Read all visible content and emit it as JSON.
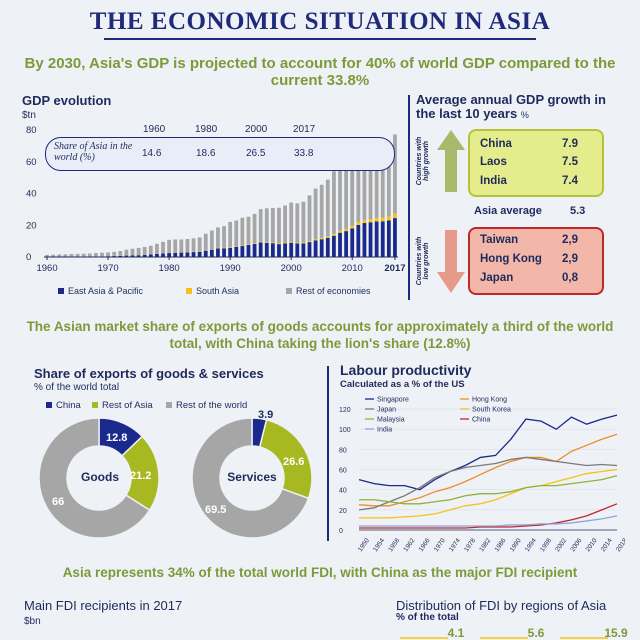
{
  "header": {
    "title": "THE ECONOMIC SITUATION IN ASIA",
    "subtitle": "By 2030, Asia's GDP is projected to account for 40% of world GDP compared to the current 33.8%"
  },
  "gdp_evolution": {
    "title": "GDP evolution",
    "unit": "$tn",
    "share_label": "Share of Asia in the world (%)",
    "share_years": [
      "1960",
      "1980",
      "2000",
      "2017"
    ],
    "share_values": [
      "14.6",
      "18.6",
      "26.5",
      "33.8"
    ],
    "yticks": [
      "80",
      "60",
      "40",
      "20",
      "0"
    ],
    "xticks": [
      "1960",
      "1970",
      "1980",
      "1990",
      "2000",
      "2010",
      "2017"
    ],
    "legend": [
      "East Asia & Pacific",
      "South Asia",
      "Rest of economies"
    ]
  },
  "growth": {
    "title": "Average annual GDP growth in the last 10 years",
    "unit": "%",
    "high_label": "Countries with high growth",
    "low_label": "Countries with low growth",
    "high": [
      {
        "country": "China",
        "value": "7.9"
      },
      {
        "country": "Laos",
        "value": "7.5"
      },
      {
        "country": "India",
        "value": "7.4"
      }
    ],
    "average_label": "Asia average",
    "average_value": "5.3",
    "low": [
      {
        "country": "Taiwan",
        "value": "2,9"
      },
      {
        "country": "Hong Kong",
        "value": "2,9"
      },
      {
        "country": "Japan",
        "value": "0,8"
      }
    ]
  },
  "exports_headline": "The Asian market share of exports of goods accounts for approximately a third of the world total, with China taking the lion's share (12.8%)",
  "exports": {
    "title": "Share of exports of goods & services",
    "unit": "% of the world total",
    "legend": [
      "China",
      "Rest of Asia",
      "Rest of the world"
    ],
    "goods_label": "Goods",
    "services_label": "Services",
    "goods_labels": [
      "12.8",
      "21.2",
      "66"
    ],
    "services_labels": [
      "3.9",
      "26.6",
      "69.5"
    ]
  },
  "productivity": {
    "title": "Labour productivity",
    "unit": "Calculated as a % of the US",
    "yticks": [
      "120",
      "100",
      "80",
      "60",
      "40",
      "20",
      "0"
    ],
    "xticks": [
      "1950",
      "1954",
      "1958",
      "1962",
      "1966",
      "1970",
      "1974",
      "1978",
      "1982",
      "1986",
      "1990",
      "1994",
      "1998",
      "2002",
      "2006",
      "2010",
      "2014",
      "2018"
    ],
    "legend": [
      "Singapore",
      "Hong Kong",
      "Japan",
      "South Korea",
      "Malaysia",
      "China",
      "India"
    ]
  },
  "fdi_headline": "Asia represents 34% of the total world FDI, with China as the major FDI recipient",
  "fdi": {
    "recipients_title": "Main FDI recipients in 2017",
    "recipients_unit": "$bn",
    "distribution_title": "Distribution of FDI by regions of Asia",
    "distribution_unit": "% of the total",
    "distribution_values": [
      "4.1",
      "5.6",
      "15.9"
    ]
  },
  "colors": {
    "navy": "#1a2a8c",
    "olive": "#a8b820",
    "grey": "#a6a6a6",
    "yellow": "#f5c21a",
    "green_text": "#7d9a3a",
    "high_box": "#e5ec8c",
    "low_box": "#f2b7a8",
    "red": "#c0272d"
  },
  "chart_data": [
    {
      "type": "bar",
      "title": "GDP evolution",
      "ylabel": "$tn",
      "ylim": [
        0,
        80
      ],
      "x": [
        1960,
        1961,
        1962,
        1963,
        1964,
        1965,
        1966,
        1967,
        1968,
        1969,
        1970,
        1971,
        1972,
        1973,
        1974,
        1975,
        1976,
        1977,
        1978,
        1979,
        1980,
        1981,
        1982,
        1983,
        1984,
        1985,
        1986,
        1987,
        1988,
        1989,
        1990,
        1991,
        1992,
        1993,
        1994,
        1995,
        1996,
        1997,
        1998,
        1999,
        2000,
        2001,
        2002,
        2003,
        2004,
        2005,
        2006,
        2007,
        2008,
        2009,
        2010,
        2011,
        2012,
        2013,
        2014,
        2015,
        2016,
        2017
      ],
      "stacked": true,
      "series": [
        {
          "name": "East Asia & Pacific",
          "values": [
            0.2,
            0.2,
            0.2,
            0.2,
            0.3,
            0.3,
            0.3,
            0.3,
            0.4,
            0.4,
            0.5,
            0.6,
            0.7,
            0.9,
            1.0,
            1.1,
            1.3,
            1.6,
            2.0,
            2.2,
            2.5,
            2.7,
            2.8,
            2.9,
            3.1,
            3.3,
            4.0,
            4.6,
            5.4,
            5.5,
            5.8,
            6.3,
            6.9,
            7.6,
            8.2,
            9.2,
            8.9,
            8.7,
            8.1,
            8.6,
            9.0,
            8.5,
            8.6,
            9.4,
            10.5,
            11.2,
            12.0,
            13.4,
            15.3,
            16.3,
            18.0,
            20.2,
            21.4,
            21.9,
            22.4,
            22.5,
            23.0,
            24.5
          ]
        },
        {
          "name": "South Asia",
          "values": [
            0.05,
            0.05,
            0.05,
            0.05,
            0.06,
            0.06,
            0.06,
            0.06,
            0.07,
            0.07,
            0.08,
            0.08,
            0.08,
            0.09,
            0.1,
            0.1,
            0.1,
            0.11,
            0.13,
            0.15,
            0.2,
            0.22,
            0.22,
            0.23,
            0.24,
            0.26,
            0.28,
            0.3,
            0.33,
            0.34,
            0.4,
            0.35,
            0.36,
            0.37,
            0.4,
            0.45,
            0.48,
            0.5,
            0.52,
            0.54,
            0.6,
            0.6,
            0.62,
            0.7,
            0.8,
            0.9,
            1.0,
            1.2,
            1.3,
            1.4,
            1.7,
            1.9,
            2.0,
            2.0,
            2.2,
            2.4,
            2.6,
            3.0
          ]
        },
        {
          "name": "Rest of economies",
          "values": [
            1.1,
            1.2,
            1.3,
            1.4,
            1.5,
            1.6,
            1.7,
            1.8,
            2.0,
            2.2,
            2.3,
            2.6,
            3.0,
            3.6,
            4.1,
            4.5,
            4.9,
            5.4,
            6.2,
            7.2,
            8.1,
            8.1,
            8.0,
            8.2,
            8.4,
            8.8,
            10.4,
            11.8,
            12.9,
            13.6,
            15.9,
            16.3,
            17.5,
            17.4,
            18.6,
            20.5,
            21.3,
            21.7,
            22.4,
            23.3,
            24.7,
            24.7,
            25.6,
            28.7,
            31.8,
            33.4,
            35.7,
            39.4,
            42.7,
            39.7,
            42.3,
            46.3,
            46.8,
            48.2,
            49.6,
            46.6,
            46.9,
            49.7
          ]
        }
      ]
    },
    {
      "type": "table",
      "title": "Average annual GDP growth in the last 10 years",
      "categories": [
        "China",
        "Laos",
        "India",
        "Asia average",
        "Taiwan",
        "Hong Kong",
        "Japan"
      ],
      "values": [
        7.9,
        7.5,
        7.4,
        5.3,
        2.9,
        2.9,
        0.8
      ]
    },
    {
      "type": "pie",
      "title": "Goods",
      "categories": [
        "China",
        "Rest of Asia",
        "Rest of the world"
      ],
      "values": [
        12.8,
        21.2,
        66
      ]
    },
    {
      "type": "pie",
      "title": "Services",
      "categories": [
        "China",
        "Rest of Asia",
        "Rest of the world"
      ],
      "values": [
        3.9,
        26.6,
        69.5
      ]
    },
    {
      "type": "line",
      "title": "Labour productivity",
      "ylabel": "Calculated as a % of the US",
      "ylim": [
        0,
        125
      ],
      "x": [
        1950,
        1954,
        1958,
        1962,
        1966,
        1970,
        1974,
        1978,
        1982,
        1986,
        1990,
        1994,
        1998,
        2002,
        2006,
        2010,
        2014,
        2018
      ],
      "series": [
        {
          "name": "Singapore",
          "values": [
            50,
            46,
            44,
            44,
            40,
            50,
            58,
            64,
            72,
            74,
            90,
            110,
            108,
            100,
            112,
            105,
            110,
            114
          ]
        },
        {
          "name": "Hong Kong",
          "values": [
            25,
            24,
            24,
            28,
            32,
            38,
            42,
            48,
            55,
            62,
            68,
            72,
            72,
            68,
            78,
            84,
            90,
            95
          ]
        },
        {
          "name": "Japan",
          "values": [
            20,
            22,
            28,
            34,
            42,
            52,
            58,
            62,
            64,
            66,
            70,
            72,
            70,
            68,
            66,
            64,
            65,
            64
          ]
        },
        {
          "name": "South Korea",
          "values": [
            12,
            12,
            12,
            13,
            14,
            16,
            20,
            24,
            26,
            30,
            36,
            42,
            44,
            48,
            52,
            56,
            58,
            60
          ]
        },
        {
          "name": "Malaysia",
          "values": [
            30,
            30,
            28,
            26,
            26,
            28,
            30,
            34,
            36,
            36,
            38,
            42,
            44,
            44,
            46,
            48,
            50,
            54
          ]
        },
        {
          "name": "China",
          "values": [
            2,
            2,
            2,
            2,
            2,
            2,
            2,
            2,
            3,
            3,
            3,
            4,
            5,
            7,
            10,
            14,
            20,
            26
          ]
        },
        {
          "name": "India",
          "values": [
            4,
            4,
            4,
            4,
            4,
            4,
            4,
            4,
            4,
            4,
            5,
            5,
            6,
            6,
            7,
            9,
            11,
            14
          ]
        }
      ]
    },
    {
      "type": "bar",
      "title": "Distribution of FDI by regions of Asia",
      "ylabel": "% of the total",
      "values": [
        4.1,
        5.6,
        15.9
      ]
    }
  ]
}
